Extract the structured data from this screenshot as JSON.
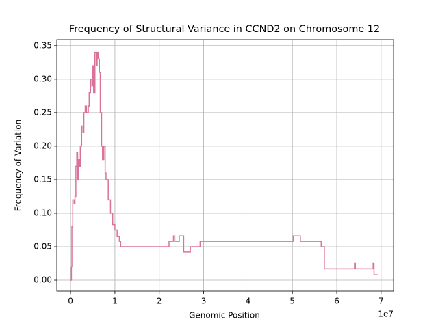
{
  "chart_data": {
    "type": "line",
    "drawstyle": "steps-post",
    "title": "Frequency of Structural Variance in CCND2 on Chromosome 12",
    "xlabel": "Genomic Position",
    "ylabel": "Frequency of Variation",
    "x_offset_label": "1e7",
    "color": "#d9739a",
    "grid": true,
    "x": [
      0,
      200000,
      300000,
      500000,
      800000,
      1000000,
      1200000,
      1400000,
      1600000,
      1800000,
      2000000,
      2200000,
      2500000,
      2800000,
      3000000,
      3300000,
      3600000,
      4000000,
      4200000,
      4500000,
      4800000,
      5000000,
      5200000,
      5500000,
      5800000,
      6000000,
      6200000,
      6500000,
      6700000,
      7000000,
      7200000,
      7500000,
      7800000,
      8000000,
      8500000,
      9000000,
      9500000,
      10000000,
      10500000,
      11000000,
      11300000,
      22200000,
      23200000,
      23500000,
      24500000,
      25500000,
      27000000,
      29200000,
      50200000,
      51800000,
      56500000,
      57200000,
      64000000,
      64200000,
      68200000,
      68400000,
      69200000
    ],
    "values": [
      0.0,
      0.02,
      0.08,
      0.12,
      0.115,
      0.125,
      0.17,
      0.19,
      0.15,
      0.18,
      0.17,
      0.2,
      0.23,
      0.22,
      0.25,
      0.26,
      0.25,
      0.26,
      0.28,
      0.3,
      0.29,
      0.32,
      0.28,
      0.34,
      0.32,
      0.34,
      0.33,
      0.31,
      0.25,
      0.2,
      0.18,
      0.2,
      0.16,
      0.15,
      0.12,
      0.1,
      0.083,
      0.075,
      0.065,
      0.058,
      0.05,
      0.058,
      0.066,
      0.058,
      0.066,
      0.042,
      0.05,
      0.058,
      0.066,
      0.058,
      0.05,
      0.017,
      0.025,
      0.017,
      0.025,
      0.008,
      0.008
    ],
    "xlim": [
      -3100000,
      72800000
    ],
    "xticks": [
      {
        "value": 0,
        "label": "0"
      },
      {
        "value": 10000000,
        "label": "1"
      },
      {
        "value": 20000000,
        "label": "2"
      },
      {
        "value": 30000000,
        "label": "3"
      },
      {
        "value": 40000000,
        "label": "4"
      },
      {
        "value": 50000000,
        "label": "5"
      },
      {
        "value": 60000000,
        "label": "6"
      },
      {
        "value": 70000000,
        "label": "7"
      }
    ],
    "ylim": [
      -0.0163,
      0.359
    ],
    "yticks": [
      {
        "value": 0,
        "label": "0.00"
      },
      0.05,
      {
        "value": 0.1,
        "label": "0.10"
      },
      0.15,
      {
        "value": 0.2,
        "label": "0.20"
      },
      0.25,
      {
        "value": 0.3,
        "label": "0.30"
      },
      0.35
    ]
  }
}
